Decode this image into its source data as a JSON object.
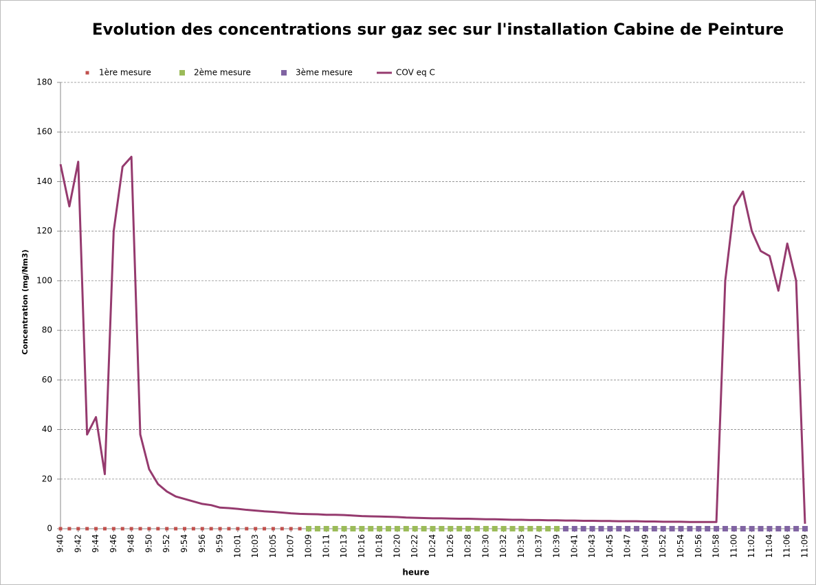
{
  "chart_data": {
    "type": "line",
    "title": "Evolution des concentrations sur gaz sec sur l'installation Cabine de Peinture",
    "x_label": "heure",
    "y_label": "Concentration (mg/Nm3)",
    "categories": [
      "9:40",
      null,
      "9:42",
      null,
      "9:44",
      null,
      "9:46",
      null,
      "9:48",
      null,
      "9:50",
      null,
      "9:52",
      null,
      "9:54",
      null,
      "9:56",
      null,
      "9:59",
      null,
      "10:01",
      null,
      "10:03",
      null,
      "10:05",
      null,
      "10:07",
      null,
      "10:09",
      null,
      "10:11",
      null,
      "10:13",
      null,
      "10:16",
      null,
      "10:18",
      null,
      "10:20",
      null,
      "10:22",
      null,
      "10:24",
      null,
      "10:26",
      null,
      "10:28",
      null,
      "10:30",
      null,
      "10:32",
      null,
      "10:35",
      null,
      "10:37",
      null,
      "10:39",
      null,
      "10:41",
      null,
      "10:43",
      null,
      "10:45",
      null,
      "10:47",
      null,
      "10:49",
      null,
      "10:52",
      null,
      "10:54",
      null,
      "10:56",
      null,
      "10:58",
      null,
      "11:00",
      null,
      "11:02",
      null,
      "11:04",
      null,
      "11:06",
      null,
      "11:09"
    ],
    "series": [
      {
        "name": "1ère mesure",
        "color": "#c0504d",
        "style": "marker",
        "values": [
          0,
          0,
          0,
          0,
          0,
          0,
          0,
          0,
          0,
          0,
          0,
          0,
          0,
          0,
          0,
          0,
          0,
          0,
          0,
          0,
          0,
          0,
          0,
          0,
          0,
          0,
          0,
          0,
          null,
          null,
          null,
          null,
          null,
          null,
          null,
          null,
          null,
          null,
          null,
          null,
          null,
          null,
          null,
          null,
          null,
          null,
          null,
          null,
          null,
          null,
          null,
          null,
          null,
          null,
          null,
          null,
          null,
          null,
          null,
          null,
          null,
          null,
          null,
          null,
          null,
          null,
          null,
          null,
          null,
          null,
          null,
          null,
          null,
          null,
          null,
          null,
          null,
          null,
          null,
          null,
          null,
          null,
          null,
          null,
          null
        ]
      },
      {
        "name": "2ème mesure",
        "color": "#9bbb59",
        "style": "marker",
        "values": [
          null,
          null,
          null,
          null,
          null,
          null,
          null,
          null,
          null,
          null,
          null,
          null,
          null,
          null,
          null,
          null,
          null,
          null,
          null,
          null,
          null,
          null,
          null,
          null,
          null,
          null,
          null,
          null,
          0,
          0,
          0,
          0,
          0,
          0,
          0,
          0,
          0,
          0,
          0,
          0,
          0,
          0,
          0,
          0,
          0,
          0,
          0,
          0,
          0,
          0,
          0,
          0,
          0,
          0,
          0,
          0,
          0,
          null,
          null,
          null,
          null,
          null,
          null,
          null,
          null,
          null,
          null,
          null,
          null,
          null,
          null,
          null,
          null,
          null,
          null,
          null,
          null,
          null,
          null,
          null,
          null,
          null,
          null,
          null,
          null
        ]
      },
      {
        "name": "3ème mesure",
        "color": "#8064a2",
        "style": "marker",
        "values": [
          null,
          null,
          null,
          null,
          null,
          null,
          null,
          null,
          null,
          null,
          null,
          null,
          null,
          null,
          null,
          null,
          null,
          null,
          null,
          null,
          null,
          null,
          null,
          null,
          null,
          null,
          null,
          null,
          null,
          null,
          null,
          null,
          null,
          null,
          null,
          null,
          null,
          null,
          null,
          null,
          null,
          null,
          null,
          null,
          null,
          null,
          null,
          null,
          null,
          null,
          null,
          null,
          null,
          null,
          null,
          null,
          null,
          0,
          0,
          0,
          0,
          0,
          0,
          0,
          0,
          0,
          0,
          0,
          0,
          0,
          0,
          0,
          0,
          0,
          0,
          0,
          0,
          0,
          0,
          0,
          0,
          0,
          0,
          0,
          0
        ]
      },
      {
        "name": "COV eq C",
        "color": "#953a6e",
        "style": "line",
        "values": [
          147,
          130,
          148,
          38,
          45,
          22,
          120,
          146,
          150,
          38,
          24,
          18,
          15,
          13,
          12,
          11,
          10,
          9.5,
          8.5,
          8.3,
          8,
          7.6,
          7.3,
          7,
          6.8,
          6.5,
          6.2,
          6,
          5.9,
          5.8,
          5.6,
          5.6,
          5.5,
          5.3,
          5.1,
          5,
          4.9,
          4.8,
          4.7,
          4.5,
          4.4,
          4.3,
          4.2,
          4.2,
          4.1,
          4,
          4,
          3.9,
          3.8,
          3.8,
          3.7,
          3.6,
          3.6,
          3.5,
          3.5,
          3.4,
          3.4,
          3.3,
          3.3,
          3.2,
          3.2,
          3.1,
          3.1,
          3,
          3,
          3,
          2.9,
          2.9,
          2.8,
          2.8,
          2.8,
          2.7,
          2.7,
          2.7,
          2.7,
          100,
          130,
          136,
          120,
          112,
          110,
          96,
          115,
          100,
          2
        ]
      }
    ],
    "ylim": [
      0,
      180
    ],
    "yticks": [
      0,
      20,
      40,
      60,
      80,
      100,
      120,
      140,
      160,
      180
    ],
    "grid": true,
    "legend": "top"
  }
}
